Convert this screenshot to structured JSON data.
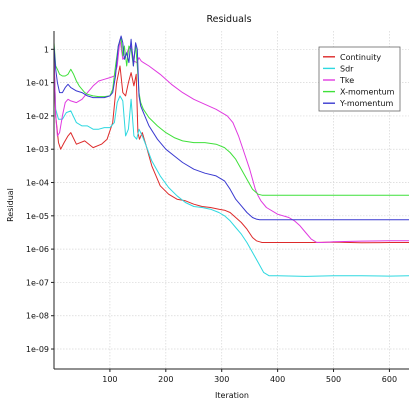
{
  "chart_data": {
    "type": "line",
    "title": "Residuals",
    "xlabel": "Iteration",
    "ylabel": "Residual",
    "y_scale": "log",
    "xlim": [
      0,
      635
    ],
    "ylim_exponent": [
      -9.6,
      0.55
    ],
    "x_ticks": [
      100,
      200,
      300,
      400,
      500,
      600
    ],
    "x_tick_labels": [
      "100",
      "200",
      "300",
      "400",
      "500",
      "600"
    ],
    "y_ticks_exponent": [
      0,
      -1,
      -2,
      -3,
      -4,
      -5,
      -6,
      -7,
      -8,
      -9
    ],
    "y_tick_labels": [
      "1",
      "1e-01",
      "1e-02",
      "1e-03",
      "1e-04",
      "1e-05",
      "1e-06",
      "1e-07",
      "1e-08",
      "1e-09"
    ],
    "grid": true,
    "legend_position": "top-right",
    "series": [
      {
        "name": "Continuity",
        "color": "#dd2a2a",
        "x": [
          0,
          3,
          8,
          12,
          18,
          25,
          30,
          40,
          55,
          70,
          85,
          95,
          105,
          112,
          118,
          123,
          128,
          133,
          138,
          143,
          147,
          150,
          153,
          158,
          165,
          175,
          190,
          205,
          220,
          235,
          250,
          265,
          280,
          295,
          305,
          315,
          325,
          335,
          345,
          355,
          362,
          368,
          372,
          380,
          420,
          460,
          500,
          550,
          600,
          635
        ],
        "y": [
          -0.2,
          -2.0,
          -2.8,
          -3.0,
          -2.8,
          -2.6,
          -2.5,
          -2.85,
          -2.75,
          -2.95,
          -2.85,
          -2.7,
          -2.2,
          -1.0,
          -0.5,
          -1.3,
          -1.4,
          -1.0,
          -0.7,
          -1.1,
          -0.75,
          -2.5,
          -2.7,
          -2.5,
          -2.9,
          -3.5,
          -4.1,
          -4.35,
          -4.5,
          -4.55,
          -4.65,
          -4.72,
          -4.75,
          -4.8,
          -4.83,
          -4.9,
          -5.05,
          -5.2,
          -5.4,
          -5.65,
          -5.75,
          -5.78,
          -5.8,
          -5.8,
          -5.8,
          -5.8,
          -5.79,
          -5.81,
          -5.8,
          -5.8
        ]
      },
      {
        "name": "Sdr",
        "color": "#2ed8e0",
        "x": [
          0,
          3,
          8,
          15,
          22,
          30,
          40,
          50,
          60,
          70,
          80,
          90,
          100,
          108,
          113,
          118,
          123,
          128,
          133,
          138,
          143,
          148,
          152,
          158,
          165,
          175,
          190,
          205,
          220,
          235,
          250,
          265,
          280,
          295,
          305,
          315,
          325,
          335,
          345,
          355,
          365,
          375,
          385,
          400,
          450,
          500,
          550,
          600,
          635
        ],
        "y": [
          -0.4,
          -1.8,
          -2.1,
          -2.1,
          -1.9,
          -1.85,
          -2.2,
          -2.3,
          -2.3,
          -2.4,
          -2.4,
          -2.35,
          -2.35,
          -2.2,
          -1.6,
          -1.4,
          -1.55,
          -2.6,
          -2.4,
          -1.5,
          -2.6,
          -2.7,
          -2.4,
          -2.6,
          -2.9,
          -3.35,
          -3.8,
          -4.15,
          -4.4,
          -4.6,
          -4.72,
          -4.75,
          -4.8,
          -4.9,
          -5.0,
          -5.15,
          -5.35,
          -5.55,
          -5.8,
          -6.1,
          -6.4,
          -6.7,
          -6.8,
          -6.8,
          -6.82,
          -6.8,
          -6.8,
          -6.81,
          -6.8
        ]
      },
      {
        "name": "Tke",
        "color": "#e03ae0",
        "x": [
          0,
          3,
          6,
          10,
          15,
          20,
          25,
          30,
          40,
          50,
          60,
          70,
          80,
          90,
          100,
          108,
          113,
          118,
          123,
          128,
          133,
          138,
          143,
          148,
          152,
          156,
          160,
          170,
          190,
          210,
          230,
          250,
          270,
          290,
          310,
          320,
          330,
          340,
          350,
          355,
          360,
          365,
          370,
          380,
          400,
          420,
          430,
          440,
          450,
          460,
          470,
          480,
          500,
          550,
          600,
          635
        ],
        "y": [
          -0.1,
          -2.0,
          -2.6,
          -2.5,
          -2.0,
          -1.6,
          -1.5,
          -1.55,
          -1.6,
          -1.5,
          -1.3,
          -1.1,
          -0.95,
          -0.9,
          -0.85,
          -0.8,
          -0.5,
          0.3,
          -0.3,
          -0.2,
          0.0,
          0.1,
          -0.35,
          -0.4,
          -0.25,
          -0.35,
          -0.4,
          -0.5,
          -0.75,
          -1.05,
          -1.3,
          -1.5,
          -1.65,
          -1.8,
          -2.0,
          -2.2,
          -2.6,
          -3.1,
          -3.6,
          -3.9,
          -4.2,
          -4.4,
          -4.55,
          -4.75,
          -4.95,
          -5.05,
          -5.15,
          -5.3,
          -5.5,
          -5.7,
          -5.8,
          -5.8,
          -5.78,
          -5.76,
          -5.75,
          -5.75
        ]
      },
      {
        "name": "X-momentum",
        "color": "#3fe03a",
        "x": [
          0,
          3,
          6,
          10,
          15,
          20,
          25,
          30,
          35,
          40,
          45,
          50,
          55,
          60,
          70,
          80,
          90,
          100,
          105,
          110,
          115,
          120,
          123,
          126,
          130,
          134,
          138,
          142,
          146,
          149,
          152,
          155,
          160,
          170,
          185,
          200,
          215,
          230,
          250,
          270,
          290,
          305,
          315,
          325,
          335,
          345,
          355,
          365,
          372,
          380,
          420,
          460,
          500,
          550,
          600,
          635
        ],
        "y": [
          0.2,
          -0.5,
          -0.6,
          -0.75,
          -0.8,
          -0.8,
          -0.75,
          -0.6,
          -0.75,
          -0.95,
          -1.1,
          -1.2,
          -1.3,
          -1.35,
          -1.4,
          -1.42,
          -1.42,
          -1.4,
          -1.2,
          -0.5,
          0.1,
          0.35,
          -0.2,
          0.1,
          -0.5,
          0.1,
          0.0,
          -0.5,
          0.15,
          -0.5,
          -1.3,
          -1.6,
          -1.8,
          -2.05,
          -2.3,
          -2.5,
          -2.65,
          -2.75,
          -2.8,
          -2.8,
          -2.85,
          -2.95,
          -3.1,
          -3.3,
          -3.6,
          -3.9,
          -4.2,
          -4.35,
          -4.38,
          -4.38,
          -4.38,
          -4.38,
          -4.38,
          -4.38,
          -4.38,
          -4.38
        ]
      },
      {
        "name": "Y-momentum",
        "color": "#3a3ad0",
        "x": [
          0,
          3,
          6,
          10,
          15,
          20,
          25,
          30,
          40,
          50,
          60,
          70,
          80,
          90,
          100,
          105,
          110,
          115,
          120,
          123,
          126,
          130,
          134,
          138,
          142,
          146,
          149,
          152,
          155,
          160,
          170,
          185,
          200,
          215,
          230,
          250,
          270,
          290,
          305,
          315,
          325,
          335,
          345,
          355,
          362,
          368,
          372,
          380,
          420,
          460,
          500,
          550,
          600,
          635
        ],
        "y": [
          0.1,
          -0.6,
          -1.0,
          -1.3,
          -1.3,
          -1.15,
          -1.05,
          -1.15,
          -1.25,
          -1.3,
          -1.4,
          -1.45,
          -1.45,
          -1.45,
          -1.4,
          -1.3,
          -0.8,
          0.1,
          0.4,
          0.2,
          -0.3,
          -0.1,
          -0.4,
          0.3,
          -0.5,
          0.2,
          0.0,
          -1.4,
          -1.7,
          -1.9,
          -2.3,
          -2.7,
          -3.0,
          -3.2,
          -3.4,
          -3.6,
          -3.72,
          -3.8,
          -3.95,
          -4.2,
          -4.5,
          -4.7,
          -4.9,
          -5.05,
          -5.1,
          -5.12,
          -5.12,
          -5.12,
          -5.12,
          -5.12,
          -5.12,
          -5.12,
          -5.12,
          -5.12
        ]
      }
    ]
  }
}
